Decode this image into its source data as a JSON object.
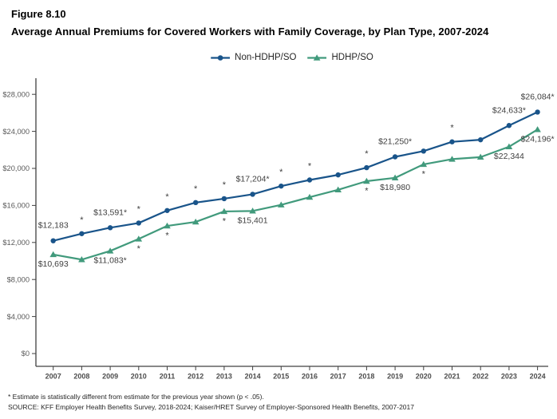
{
  "header": {
    "figure_label": "Figure 8.10",
    "title": "Average Annual Premiums for Covered Workers with Family Coverage, by Plan Type, 2007-2024"
  },
  "footnotes": [
    "* Estimate is statistically different from estimate for the previous year shown (p < .05).",
    "SOURCE: KFF Employer Health Benefits Survey, 2018-2024; Kaiser/HRET Survey of Employer-Sponsored Health Benefits, 2007-2017"
  ],
  "chart_data": {
    "type": "line",
    "title": "Average Annual Premiums for Covered Workers with Family Coverage, by Plan Type, 2007-2024",
    "xlabel": "",
    "ylabel": "",
    "ylim": [
      0,
      28000
    ],
    "ytick_values": [
      0,
      4000,
      8000,
      12000,
      16000,
      20000,
      24000,
      28000
    ],
    "ytick_labels": [
      "$0",
      "$4,000",
      "$8,000",
      "$12,000",
      "$16,000",
      "$20,000",
      "$24,000",
      "$28,000"
    ],
    "grid": "off",
    "legend_position": "top-center",
    "categories": [
      2007,
      2008,
      2009,
      2010,
      2011,
      2012,
      2013,
      2014,
      2015,
      2016,
      2017,
      2018,
      2019,
      2020,
      2021,
      2022,
      2023,
      2024
    ],
    "series": [
      {
        "name": "Non-HDHP/SO",
        "color": "#19548A",
        "marker": "circle",
        "label_position": "above",
        "values": [
          12183,
          12950,
          13591,
          14100,
          15450,
          16310,
          16730,
          17204,
          18090,
          18750,
          19300,
          20080,
          21250,
          21870,
          22870,
          23090,
          24633,
          26084
        ],
        "point_labels": {
          "2007": "$12,183",
          "2009": "$13,591*",
          "2014": "$17,204*",
          "2019": "$21,250*",
          "2023": "$24,633*",
          "2024": "$26,084*"
        },
        "sig_marker_years": [
          2008,
          2010,
          2011,
          2012,
          2013,
          2015,
          2016,
          2018,
          2021
        ]
      },
      {
        "name": "HDHP/SO",
        "color": "#419A7C",
        "marker": "triangle",
        "label_position": "below",
        "values": [
          10693,
          10150,
          11083,
          12380,
          13790,
          14220,
          15350,
          15401,
          16060,
          16890,
          17690,
          18620,
          18980,
          20440,
          21000,
          21220,
          22344,
          24196
        ],
        "point_labels": {
          "2007": "$10,693",
          "2009": "$11,083*",
          "2014": "$15,401",
          "2019": "$18,980",
          "2023": "$22,344",
          "2024": "$24,196*"
        },
        "sig_marker_years": [
          2010,
          2011,
          2013,
          2018,
          2020
        ]
      }
    ]
  }
}
